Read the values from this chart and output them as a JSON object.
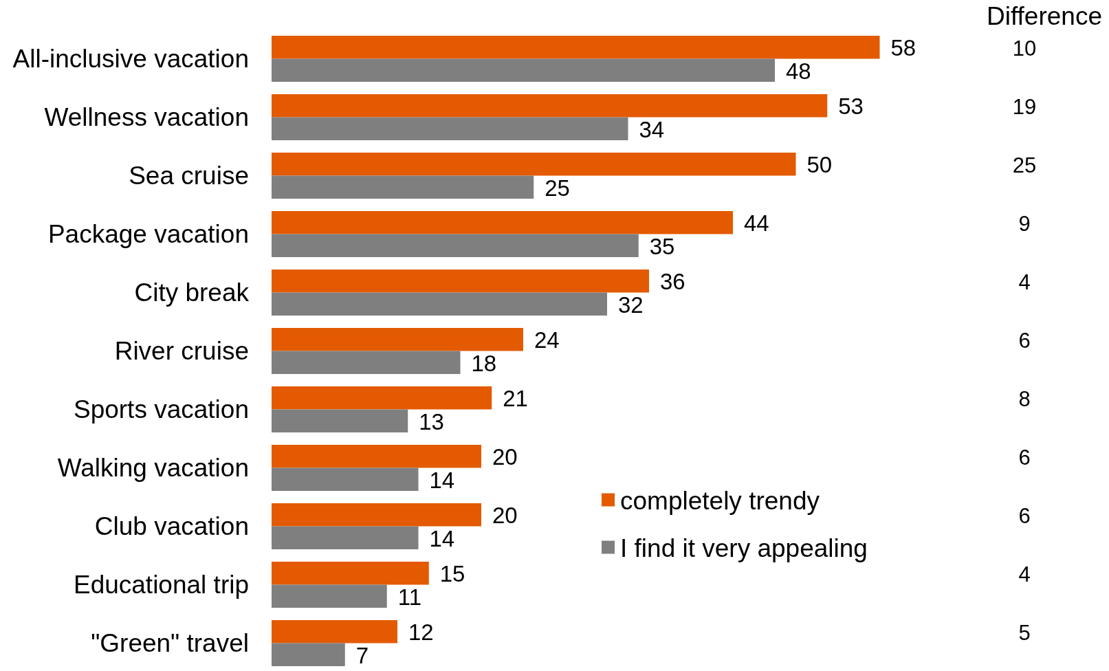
{
  "chart_data": {
    "type": "bar",
    "orientation": "horizontal",
    "categories": [
      "All-inclusive vacation",
      "Wellness vacation",
      "Sea cruise",
      "Package vacation",
      "City break",
      "River cruise",
      "Sports vacation",
      "Walking vacation",
      "Club vacation",
      "Educational trip",
      "\"Green\" travel"
    ],
    "series": [
      {
        "name": "completely trendy",
        "color": "#e35a00",
        "values": [
          58,
          53,
          50,
          44,
          36,
          24,
          21,
          20,
          20,
          15,
          12
        ]
      },
      {
        "name": "I find it very appealing",
        "color": "#7f7f7f",
        "values": [
          48,
          34,
          25,
          35,
          32,
          18,
          13,
          14,
          14,
          11,
          7
        ]
      }
    ],
    "data_labels": true,
    "legend": "bottom right",
    "annotations": [
      "Difference",
      "10",
      "19",
      "25",
      "9",
      "4",
      "6",
      "8",
      "6",
      "6",
      "4",
      "5"
    ]
  }
}
